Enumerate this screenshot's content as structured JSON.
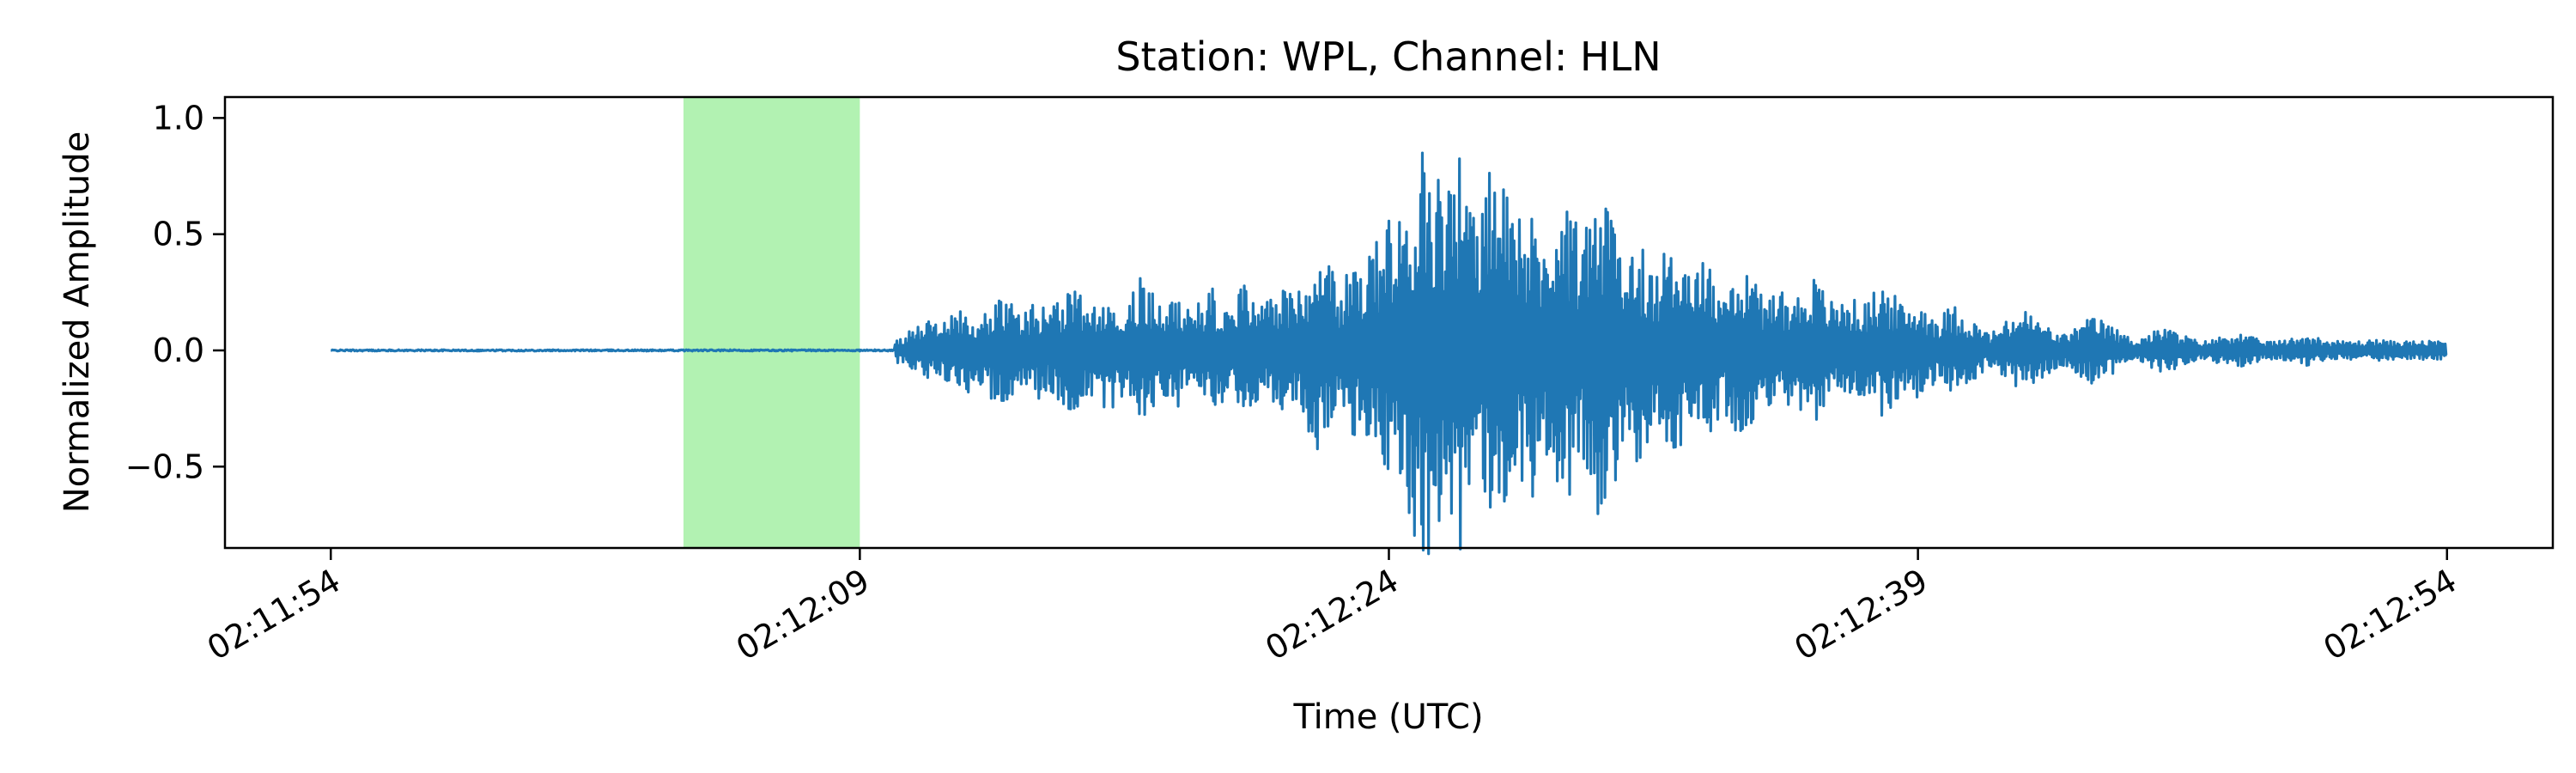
{
  "chart_data": {
    "type": "line",
    "title": "Station: WPL, Channel: HLN",
    "xlabel": "Time (UTC)",
    "ylabel": "Normalized Amplitude",
    "x_axis": {
      "type": "time",
      "range": [
        "02:11:51",
        "02:12:57"
      ],
      "ticks": [
        "02:11:54",
        "02:12:09",
        "02:12:24",
        "02:12:39",
        "02:12:54"
      ],
      "tick_rotation_deg": 30
    },
    "y_axis": {
      "range": [
        -0.85,
        1.09
      ],
      "ticks": [
        {
          "value": -0.5,
          "label": "−0.5"
        },
        {
          "value": 0.0,
          "label": "0.0"
        },
        {
          "value": 0.5,
          "label": "0.5"
        },
        {
          "value": 1.0,
          "label": "1.0"
        }
      ]
    },
    "grid": false,
    "legend": "none",
    "highlight_span": {
      "start": "02:12:04",
      "end": "02:12:09",
      "color": "#b2f2b2"
    },
    "series": [
      {
        "color": "#1f77b4",
        "start": "02:11:54",
        "end": "02:12:54",
        "points": [
          [
            "02:11:54",
            0.0
          ],
          [
            "02:12:04",
            0.0
          ],
          [
            "02:12:09",
            0.0
          ],
          [
            "02:12:10",
            0.0
          ],
          [
            "02:12:11",
            0.13
          ],
          [
            "02:12:11",
            -0.12
          ],
          [
            "02:12:12",
            0.2
          ],
          [
            "02:12:12",
            -0.2
          ],
          [
            "02:12:13",
            0.24
          ],
          [
            "02:12:13",
            -0.25
          ],
          [
            "02:12:14",
            0.22
          ],
          [
            "02:12:15",
            -0.28
          ],
          [
            "02:12:16",
            0.28
          ],
          [
            "02:12:17",
            -0.32
          ],
          [
            "02:12:18",
            0.25
          ],
          [
            "02:12:19",
            -0.27
          ],
          [
            "02:12:20",
            0.3
          ],
          [
            "02:12:21",
            -0.3
          ],
          [
            "02:12:22",
            0.45
          ],
          [
            "02:12:23",
            -0.38
          ],
          [
            "02:12:24",
            0.62
          ],
          [
            "02:12:25",
            -0.55
          ],
          [
            "02:12:25",
            1.0
          ],
          [
            "02:12:26",
            -0.76
          ],
          [
            "02:12:26",
            0.92
          ],
          [
            "02:12:27",
            -0.72
          ],
          [
            "02:12:27",
            0.86
          ],
          [
            "02:12:28",
            -0.7
          ],
          [
            "02:12:29",
            0.68
          ],
          [
            "02:12:30",
            -0.76
          ],
          [
            "02:12:31",
            0.5
          ],
          [
            "02:12:32",
            -0.5
          ],
          [
            "02:12:33",
            0.42
          ],
          [
            "02:12:34",
            -0.4
          ],
          [
            "02:12:35",
            0.3
          ],
          [
            "02:12:36",
            -0.33
          ],
          [
            "02:12:37",
            0.25
          ],
          [
            "02:12:38",
            -0.3
          ],
          [
            "02:12:39",
            0.22
          ],
          [
            "02:12:40",
            -0.2
          ],
          [
            "02:12:42",
            0.18
          ],
          [
            "02:12:44",
            -0.15
          ],
          [
            "02:12:46",
            0.1
          ],
          [
            "02:12:48",
            -0.08
          ],
          [
            "02:12:50",
            0.07
          ],
          [
            "02:12:52",
            -0.05
          ],
          [
            "02:12:54",
            -0.02
          ]
        ]
      }
    ]
  }
}
